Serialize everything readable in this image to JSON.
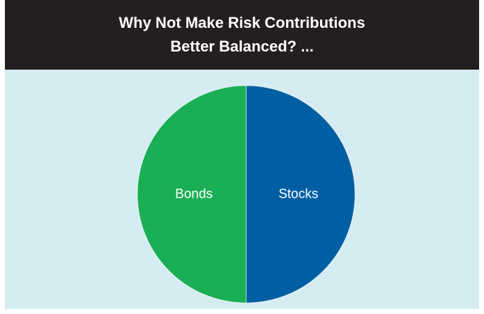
{
  "colors": {
    "title_bar": "#231f20",
    "title_text": "#ffffff",
    "plot_background": "#d6ecf3",
    "slice_label": "#ffffff"
  },
  "chart_data": {
    "type": "pie",
    "title_lines": [
      "Why Not Make Risk Contributions",
      "Better Balanced? ..."
    ],
    "slices": [
      {
        "label": "Stocks",
        "value": 50,
        "color": "#005fa3"
      },
      {
        "label": "Bonds",
        "value": 50,
        "color": "#1aaf54"
      }
    ],
    "start_angle": "12 o'clock",
    "direction": "clockwise",
    "legend": "none"
  }
}
